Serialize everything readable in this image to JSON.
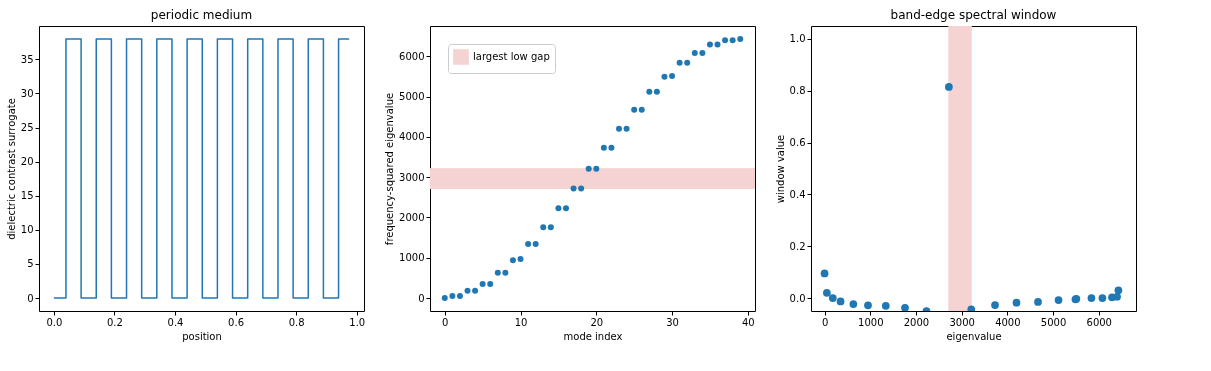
{
  "chart_data": [
    {
      "type": "step",
      "title": "periodic medium",
      "xlabel": "position",
      "ylabel": "dielectric contrast surrogate",
      "color": "#1f77b4",
      "grid": false,
      "marker": "none",
      "x": [
        0,
        0.04,
        0.09,
        0.14,
        0.19,
        0.24,
        0.29,
        0.34,
        0.39,
        0.44,
        0.49,
        0.54,
        0.59,
        0.64,
        0.69,
        0.74,
        0.79,
        0.84,
        0.89,
        0.94,
        0.975
      ],
      "values": [
        0,
        38,
        0,
        38,
        0,
        38,
        0,
        38,
        0,
        38,
        0,
        38,
        0,
        38,
        0,
        38,
        0,
        38,
        0,
        38,
        38
      ],
      "xlim": [
        -0.049,
        1.024
      ],
      "ylim": [
        -1.9,
        39.9
      ],
      "xticks": [
        {
          "value": 0,
          "label": "0.0"
        },
        0.2,
        0.4,
        0.6,
        0.8,
        {
          "value": 1,
          "label": "1.0"
        }
      ],
      "yticks": [
        0,
        5,
        10,
        15,
        20,
        25,
        30,
        35
      ]
    },
    {
      "type": "scatter",
      "xlabel": "mode index",
      "ylabel": "frequency-squared eigenvalue",
      "color": "#1f77b4",
      "grid": false,
      "legend": "top left",
      "marker": "circle",
      "x": [
        0,
        1,
        2,
        3,
        4,
        5,
        6,
        7,
        8,
        9,
        10,
        11,
        12,
        13,
        14,
        15,
        16,
        17,
        18,
        19,
        20,
        21,
        22,
        23,
        24,
        25,
        26,
        27,
        28,
        29,
        30,
        31,
        32,
        33,
        34,
        35,
        36,
        37,
        38,
        39
      ],
      "values": [
        0,
        50,
        50,
        180,
        180,
        350,
        350,
        630,
        630,
        940,
        970,
        1340,
        1340,
        1760,
        1760,
        2230,
        2230,
        2720,
        2720,
        3210,
        3210,
        3730,
        3730,
        4200,
        4200,
        4670,
        4670,
        5120,
        5120,
        5490,
        5510,
        5840,
        5840,
        6080,
        6080,
        6290,
        6290,
        6400,
        6400,
        6430
      ],
      "bands": [
        {
          "axis": "y",
          "from": 2720,
          "to": 3210,
          "label": "largest low gap",
          "color": "#f5d3d3"
        }
      ],
      "xlim": [
        -1.95,
        40.95
      ],
      "ylim": [
        -321,
        6751
      ],
      "xticks": [
        0,
        10,
        20,
        30,
        40
      ],
      "yticks": [
        0,
        1000,
        2000,
        3000,
        4000,
        5000,
        6000
      ]
    },
    {
      "type": "scatter",
      "title": "band-edge spectral window",
      "xlabel": "eigenvalue",
      "ylabel": "window value",
      "color": "#1f77b4",
      "grid": false,
      "marker": "circle",
      "x": [
        0,
        50,
        180,
        350,
        630,
        950,
        1340,
        1760,
        2230,
        2720,
        3210,
        3730,
        4200,
        4670,
        5120,
        5490,
        5510,
        5840,
        6080,
        6290,
        6400,
        6430
      ],
      "values": [
        0.095,
        0.02,
        0.0,
        -0.013,
        -0.023,
        -0.028,
        -0.03,
        -0.038,
        -0.05,
        0.815,
        -0.044,
        -0.027,
        -0.018,
        -0.015,
        -0.008,
        -0.005,
        -0.003,
        0.0,
        0.0,
        0.003,
        0.005,
        0.03
      ],
      "bands": [
        {
          "axis": "x",
          "from": 2720,
          "to": 3210,
          "color": "#f5d3d3"
        }
      ],
      "xlim": [
        -297,
        6815
      ],
      "ylim": [
        -0.05,
        1.05
      ],
      "xticks": [
        0,
        1000,
        2000,
        3000,
        4000,
        5000,
        6000
      ],
      "yticks": [
        {
          "value": 0,
          "label": "0.0"
        },
        0.2,
        0.4,
        0.6,
        0.8,
        {
          "value": 1,
          "label": "1.0"
        }
      ]
    }
  ]
}
